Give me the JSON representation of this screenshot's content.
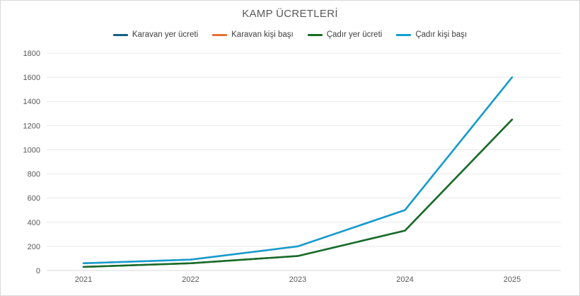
{
  "chart_data": {
    "type": "line",
    "title": "KAMP ÜCRETLERİ",
    "categories": [
      "2021",
      "2022",
      "2023",
      "2024",
      "2025"
    ],
    "series": [
      {
        "name": "Karavan yer ücreti",
        "color": "#156082",
        "values": [
          30,
          60,
          120,
          330,
          1250
        ]
      },
      {
        "name": "Karavan kişi başı",
        "color": "#E97132",
        "values": [
          60,
          90,
          200,
          500,
          1600
        ]
      },
      {
        "name": "Çadır yer ücreti",
        "color": "#196B24",
        "values": [
          30,
          60,
          120,
          330,
          1250
        ]
      },
      {
        "name": "Çadır kişi başı",
        "color": "#0F9ED5",
        "values": [
          60,
          90,
          200,
          500,
          1600
        ]
      }
    ],
    "ylim": [
      0,
      1800
    ],
    "yticks": [
      0,
      200,
      400,
      600,
      800,
      1000,
      1200,
      1400,
      1600,
      1800
    ],
    "grid": true,
    "legend_position": "top",
    "draw_order_note": "series drawn in listed order; later series overlap earlier ones",
    "colors": {
      "title_text": "#595959",
      "axis_text": "#595959",
      "gridline": "#E8E8E8",
      "axis_line": "#D9D9D9",
      "background": "#FFFFFF",
      "border": "#D9D9D9"
    }
  }
}
